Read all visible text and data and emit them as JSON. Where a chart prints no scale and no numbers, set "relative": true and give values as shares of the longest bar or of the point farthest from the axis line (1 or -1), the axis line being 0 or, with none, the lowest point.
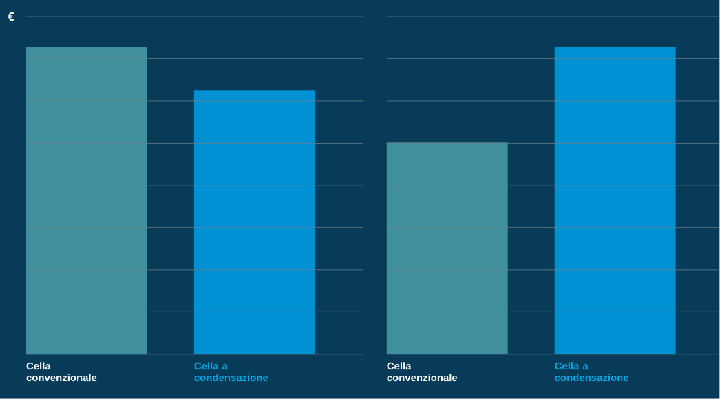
{
  "chart_data": [
    {
      "type": "bar",
      "ylabel": "€",
      "categories": [
        "Cella convenzionale",
        "Cella a condensazione"
      ],
      "values": [
        1,
        0.86
      ],
      "colors": [
        "#3f8f9c",
        "#0090d4"
      ],
      "relative": true,
      "grid": "y"
    },
    {
      "type": "bar",
      "categories": [
        "Cella convenzionale",
        "Cella a condensazione"
      ],
      "values": [
        0.69,
        1
      ],
      "colors": [
        "#3f8f9c",
        "#0090d4"
      ],
      "relative": true,
      "grid": "y"
    }
  ]
}
